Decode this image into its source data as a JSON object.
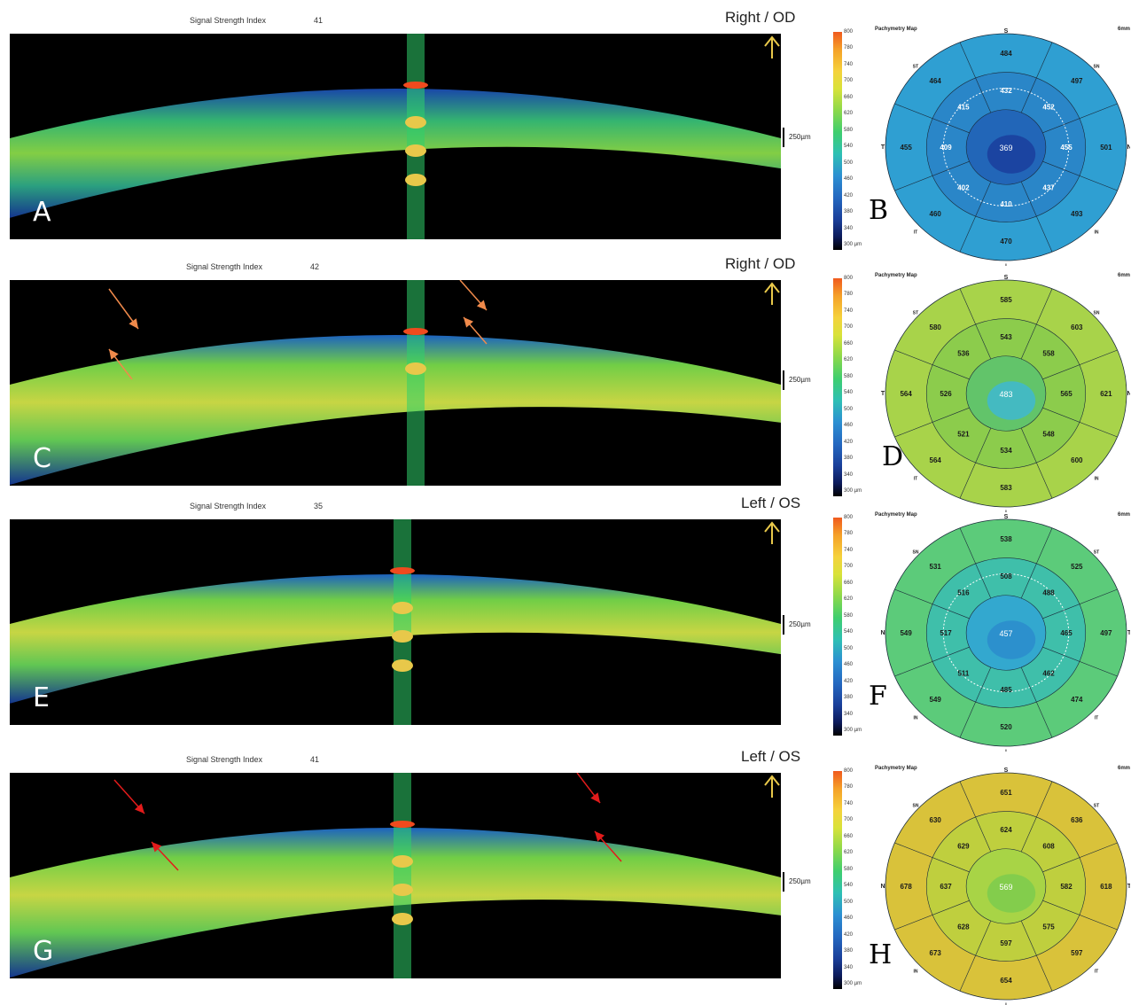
{
  "figure": {
    "colors": {
      "scan_bg": "#000000",
      "arrow_orange": "#f08a4b",
      "arrow_red": "#e21b1b"
    },
    "colorbar_ticks": [
      "800",
      "780",
      "740",
      "700",
      "660",
      "620",
      "580",
      "540",
      "500",
      "460",
      "420",
      "380",
      "340",
      "300 µm"
    ],
    "panels": [
      {
        "ssi_label": "Signal Strength Index",
        "ssi_value": "41",
        "eye": "Right / OD",
        "scan_label": "A",
        "scale_label": "250µm",
        "arrows": "none",
        "map": {
          "label": "B",
          "title": "Pachymetry Map",
          "mm": "6mm",
          "palette": "blue",
          "compass": {
            "top": "S",
            "bottom": "I",
            "left": "T",
            "right": "N"
          },
          "corners": {
            "ul": "ST",
            "ur": "SN",
            "ll": "IT",
            "lr": "IN"
          },
          "center": "369",
          "inner": [
            "432",
            "452",
            "455",
            "437",
            "410",
            "402",
            "409",
            "415"
          ],
          "outer": [
            "484",
            "497",
            "501",
            "493",
            "470",
            "460",
            "455",
            "464"
          ]
        }
      },
      {
        "ssi_label": "Signal Strength Index",
        "ssi_value": "42",
        "eye": "Right / OD",
        "scan_label": "C",
        "scale_label": "250µm",
        "arrows": "orange",
        "map": {
          "label": "D",
          "title": "Pachymetry Map",
          "mm": "6mm",
          "palette": "green",
          "compass": {
            "top": "S",
            "bottom": "I",
            "left": "T",
            "right": "N"
          },
          "corners": {
            "ul": "ST",
            "ur": "SN",
            "ll": "IT",
            "lr": "IN"
          },
          "center": "483",
          "inner": [
            "543",
            "558",
            "565",
            "548",
            "534",
            "521",
            "526",
            "536"
          ],
          "outer": [
            "585",
            "603",
            "621",
            "600",
            "583",
            "564",
            "564",
            "580"
          ]
        }
      },
      {
        "ssi_label": "Signal Strength Index",
        "ssi_value": "35",
        "eye": "Left / OS",
        "scan_label": "E",
        "scale_label": "250µm",
        "arrows": "none",
        "map": {
          "label": "F",
          "title": "Pachymetry Map",
          "mm": "6mm",
          "palette": "teal",
          "compass": {
            "top": "S",
            "bottom": "I",
            "left": "N",
            "right": "T"
          },
          "corners": {
            "ul": "SN",
            "ur": "ST",
            "ll": "IN",
            "lr": "IT"
          },
          "center": "457",
          "inner": [
            "508",
            "488",
            "465",
            "462",
            "485",
            "511",
            "517",
            "516"
          ],
          "outer": [
            "538",
            "525",
            "497",
            "474",
            "520",
            "549",
            "549",
            "531"
          ]
        }
      },
      {
        "ssi_label": "Signal Strength Index",
        "ssi_value": "41",
        "eye": "Left / OS",
        "scan_label": "G",
        "scale_label": "250µm",
        "arrows": "red",
        "map": {
          "label": "H",
          "title": "Pachymetry Map",
          "mm": "6mm",
          "palette": "yellow",
          "compass": {
            "top": "S",
            "bottom": "I",
            "left": "N",
            "right": "T"
          },
          "corners": {
            "ul": "SN",
            "ur": "ST",
            "ll": "IN",
            "lr": "IT"
          },
          "center": "569",
          "inner": [
            "624",
            "608",
            "582",
            "575",
            "597",
            "628",
            "637",
            "629"
          ],
          "outer": [
            "651",
            "636",
            "618",
            "597",
            "654",
            "673",
            "678",
            "630"
          ]
        }
      }
    ]
  }
}
